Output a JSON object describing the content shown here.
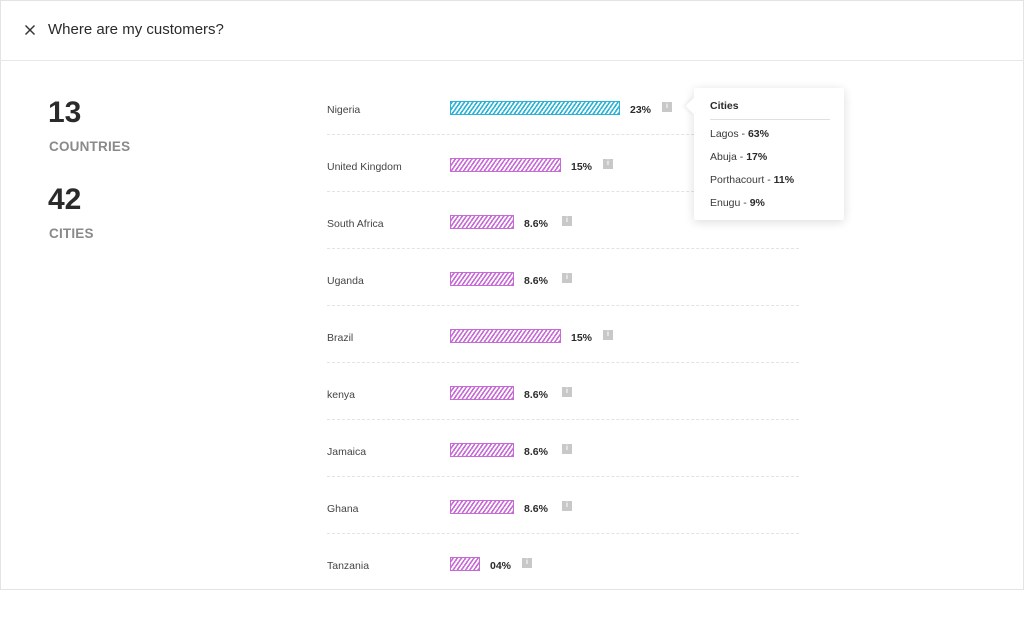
{
  "header": {
    "title": "Where are my customers?"
  },
  "stats": [
    {
      "value": "13",
      "label": "COUNTRIES"
    },
    {
      "value": "42",
      "label": "CITIES"
    }
  ],
  "rows": [
    {
      "country": "Nigeria",
      "percent": "23%",
      "value": 23,
      "active": true
    },
    {
      "country": "United Kingdom",
      "percent": "15%",
      "value": 15,
      "active": false
    },
    {
      "country": "South Africa",
      "percent": "8.6%",
      "value": 8.6,
      "active": false
    },
    {
      "country": "Uganda",
      "percent": "8.6%",
      "value": 8.6,
      "active": false
    },
    {
      "country": "Brazil",
      "percent": "15%",
      "value": 15,
      "active": false
    },
    {
      "country": "kenya",
      "percent": "8.6%",
      "value": 8.6,
      "active": false
    },
    {
      "country": "Jamaica",
      "percent": "8.6%",
      "value": 8.6,
      "active": false
    },
    {
      "country": "Ghana",
      "percent": "8.6%",
      "value": 8.6,
      "active": false
    },
    {
      "country": "Tanzania",
      "percent": "04%",
      "value": 4,
      "active": false
    }
  ],
  "info_icon_glyph": "i",
  "tooltip": {
    "title": "Cities",
    "items": [
      {
        "city": "Lagos",
        "percent": "63%"
      },
      {
        "city": "Abuja",
        "percent": "17%"
      },
      {
        "city": "Porthacourt",
        "percent": "11%"
      },
      {
        "city": "Enugu",
        "percent": "9%"
      }
    ]
  },
  "colors": {
    "active_bar": "#2ab3d6",
    "bar": "#c66ad6",
    "muted_label": "#8a8a8a",
    "info_icon": "#c8c8c8"
  }
}
